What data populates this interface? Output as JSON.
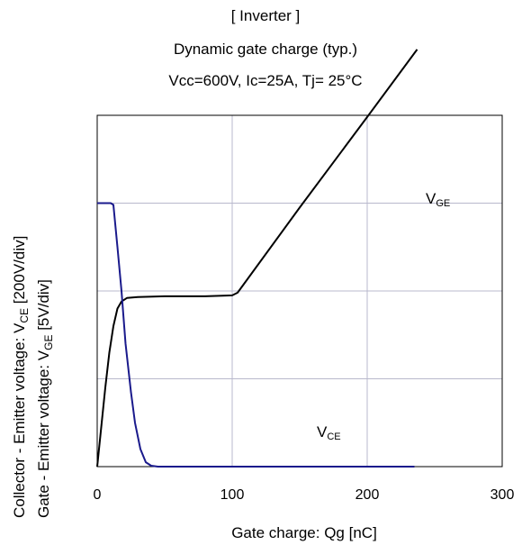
{
  "title_lines": [
    "[ Inverter ]",
    "Dynamic gate charge  (typ.)",
    "Vcc=600V,   Ic=25A,   Tj= 25°C"
  ],
  "chart_data": {
    "type": "line",
    "xlabel": "Gate charge: Qg [nC]",
    "ylabel_line1": {
      "prefix": "Collector - Emitter voltage: ",
      "symbol": "V",
      "sub": "CE",
      "suffix": " [200V/div]"
    },
    "ylabel_line2": {
      "prefix": "Gate - Emitter voltage:     ",
      "symbol": "V",
      "sub": "GE",
      "suffix": " [5V/div]"
    },
    "xlim": [
      0,
      300
    ],
    "ylim_div": [
      0,
      4
    ],
    "x_ticks": [
      "0",
      "100",
      "200",
      "300"
    ],
    "grid": true,
    "series": [
      {
        "name": "VGE",
        "label_main": "V",
        "label_sub": "GE",
        "color": "#000000",
        "points": [
          [
            0,
            0
          ],
          [
            3,
            0.45
          ],
          [
            6,
            0.9
          ],
          [
            9,
            1.3
          ],
          [
            12,
            1.6
          ],
          [
            15,
            1.8
          ],
          [
            18,
            1.88
          ],
          [
            22,
            1.92
          ],
          [
            30,
            1.93
          ],
          [
            50,
            1.94
          ],
          [
            80,
            1.94
          ],
          [
            100,
            1.95
          ],
          [
            104,
            1.98
          ],
          [
            150,
            2.95
          ],
          [
            200,
            3.98
          ],
          [
            237,
            4.75
          ]
        ]
      },
      {
        "name": "VCE",
        "label_main": "V",
        "label_sub": "CE",
        "color": "#1a1a8c",
        "points": [
          [
            0,
            3
          ],
          [
            10,
            3
          ],
          [
            12,
            2.98
          ],
          [
            15,
            2.5
          ],
          [
            18,
            2.0
          ],
          [
            21,
            1.4
          ],
          [
            25,
            0.85
          ],
          [
            28,
            0.5
          ],
          [
            32,
            0.2
          ],
          [
            36,
            0.05
          ],
          [
            40,
            0.01
          ],
          [
            45,
            0
          ],
          [
            235,
            0
          ]
        ]
      }
    ]
  }
}
